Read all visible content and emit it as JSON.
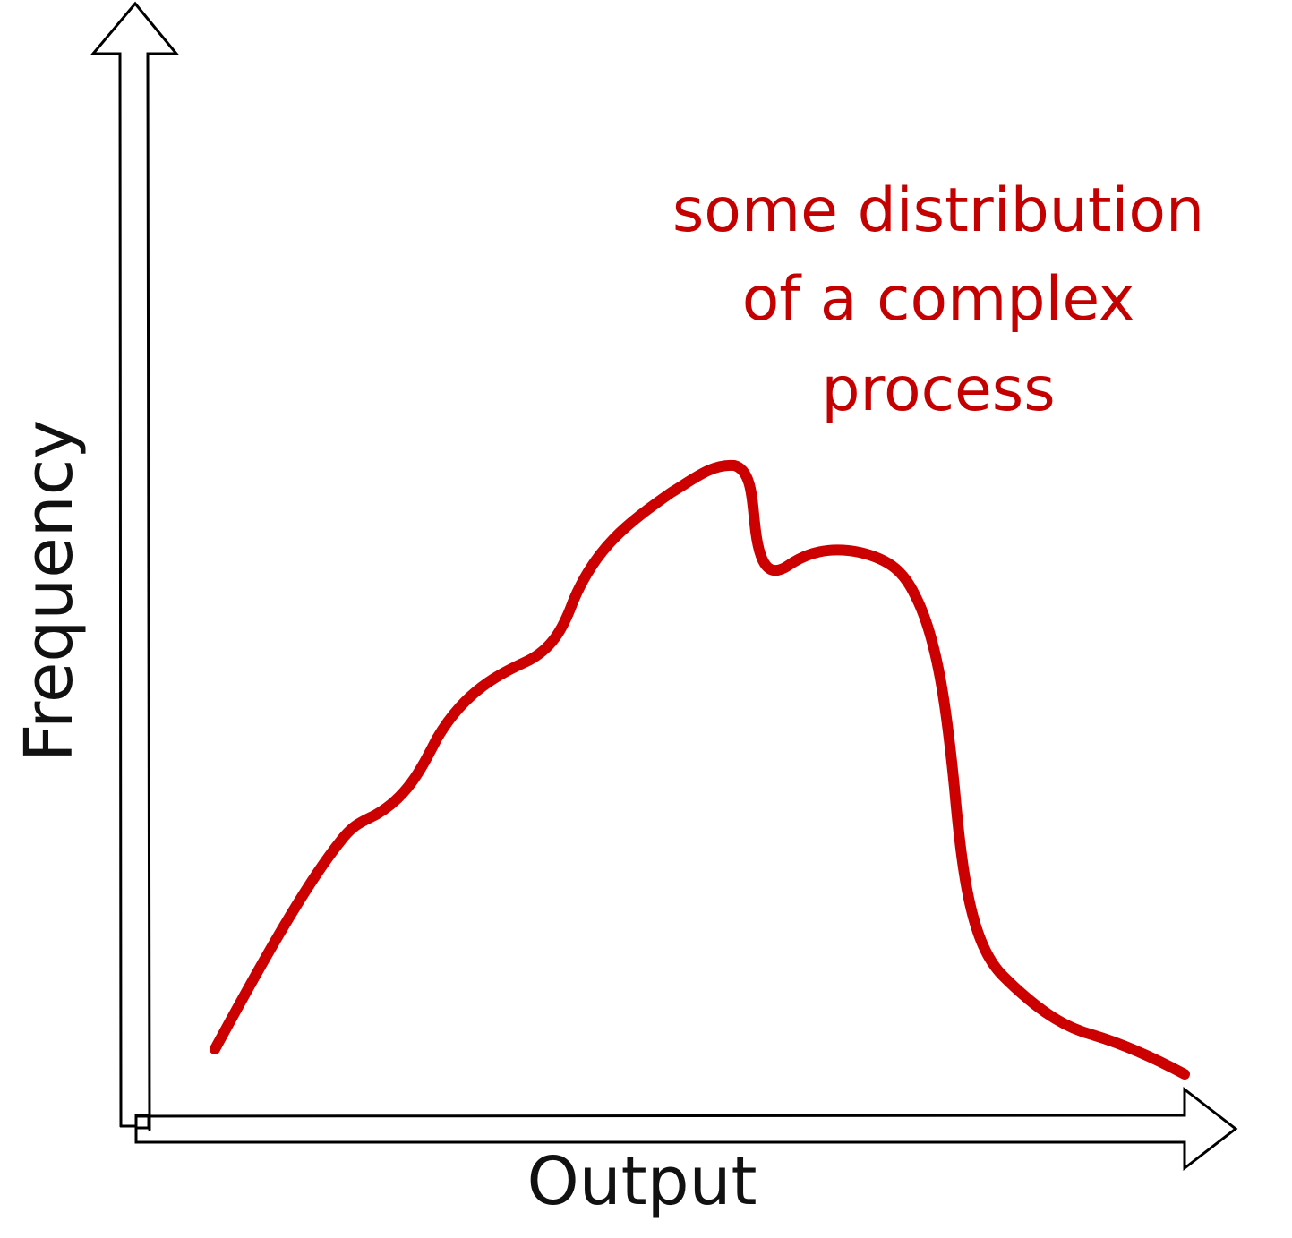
{
  "axes": {
    "x_label": "Output",
    "y_label": "Frequency"
  },
  "annotation": {
    "lines": [
      "some distribution",
      "of a complex",
      "process"
    ]
  },
  "colors": {
    "curve": "#cc0000",
    "annotation": "#c40000",
    "axis": "#000000"
  }
}
